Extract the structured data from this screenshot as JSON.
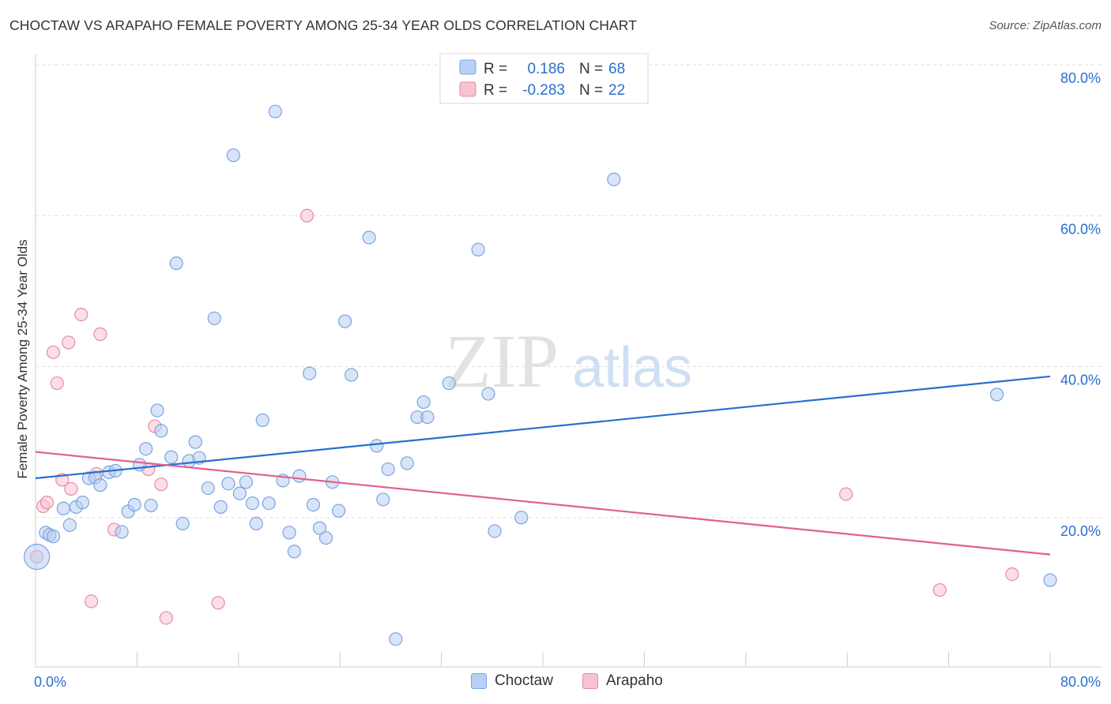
{
  "header": {
    "title": "CHOCTAW VS ARAPAHO FEMALE POVERTY AMONG 25-34 YEAR OLDS CORRELATION CHART",
    "source": "Source: ZipAtlas.com"
  },
  "watermark": {
    "zip": "ZIP",
    "atlas": "atlas"
  },
  "colors": {
    "choctaw_fill": "#b8d0f3",
    "choctaw_stroke": "#7aa4e0",
    "choctaw_line": "#2a6fcf",
    "arapaho_fill": "#f7c3d1",
    "arapaho_stroke": "#e88aa5",
    "arapaho_line": "#e0608f",
    "value_text": "#2a6fcf",
    "grid": "#dddddd"
  },
  "stats_box": {
    "rows": [
      {
        "r_label": "R =",
        "r_value": "0.186",
        "n_label": "N =",
        "n_value": "68",
        "series": "choctaw"
      },
      {
        "r_label": "R =",
        "r_value": "-0.283",
        "n_label": "N =",
        "n_value": "22",
        "series": "arapaho"
      }
    ]
  },
  "legend": {
    "choctaw": "Choctaw",
    "arapaho": "Arapaho"
  },
  "chart_data": {
    "type": "scatter",
    "title": "CHOCTAW VS ARAPAHO FEMALE POVERTY AMONG 25-34 YEAR OLDS CORRELATION CHART",
    "xlabel": "",
    "ylabel": "Female Poverty Among 25-34 Year Olds",
    "xlim": [
      0,
      80
    ],
    "ylim": [
      0,
      80
    ],
    "x_tick_labels": [
      "0.0%",
      "80.0%"
    ],
    "y_tick_labels": [
      "20.0%",
      "40.0%",
      "60.0%",
      "80.0%"
    ],
    "y_gridlines": [
      20,
      40,
      60,
      80
    ],
    "grid": true,
    "legend_position": "bottom-center",
    "series": [
      {
        "name": "Choctaw",
        "trend": {
          "x": [
            0,
            80
          ],
          "y": [
            25.2,
            38.7
          ]
        },
        "points": [
          [
            0.8,
            18.0
          ],
          [
            1.1,
            17.7
          ],
          [
            1.4,
            17.5
          ],
          [
            2.2,
            21.2
          ],
          [
            2.7,
            19.0
          ],
          [
            3.2,
            21.4
          ],
          [
            3.7,
            22.0
          ],
          [
            4.2,
            25.2
          ],
          [
            4.7,
            25.3
          ],
          [
            5.1,
            24.3
          ],
          [
            5.8,
            26.0
          ],
          [
            6.3,
            26.2
          ],
          [
            6.8,
            18.1
          ],
          [
            7.3,
            20.8
          ],
          [
            7.8,
            21.7
          ],
          [
            8.2,
            27.0
          ],
          [
            8.7,
            29.1
          ],
          [
            9.1,
            21.6
          ],
          [
            9.6,
            34.2
          ],
          [
            9.9,
            31.5
          ],
          [
            10.7,
            28.0
          ],
          [
            11.1,
            53.7
          ],
          [
            11.6,
            19.2
          ],
          [
            12.1,
            27.5
          ],
          [
            12.6,
            30.0
          ],
          [
            12.9,
            27.9
          ],
          [
            13.6,
            23.9
          ],
          [
            14.1,
            46.4
          ],
          [
            14.6,
            21.4
          ],
          [
            15.2,
            24.5
          ],
          [
            15.6,
            68.0
          ],
          [
            16.1,
            23.2
          ],
          [
            16.6,
            24.7
          ],
          [
            17.1,
            21.9
          ],
          [
            17.4,
            19.2
          ],
          [
            17.9,
            32.9
          ],
          [
            18.4,
            21.9
          ],
          [
            18.9,
            73.8
          ],
          [
            19.5,
            24.9
          ],
          [
            20.0,
            18.0
          ],
          [
            20.4,
            15.5
          ],
          [
            20.8,
            25.5
          ],
          [
            21.6,
            39.1
          ],
          [
            21.9,
            21.7
          ],
          [
            22.4,
            18.6
          ],
          [
            22.9,
            17.3
          ],
          [
            23.4,
            24.7
          ],
          [
            23.9,
            20.9
          ],
          [
            24.4,
            46.0
          ],
          [
            24.9,
            38.9
          ],
          [
            26.3,
            57.1
          ],
          [
            26.9,
            29.5
          ],
          [
            27.4,
            22.4
          ],
          [
            27.8,
            26.4
          ],
          [
            28.4,
            3.9
          ],
          [
            29.3,
            27.2
          ],
          [
            30.1,
            33.3
          ],
          [
            30.6,
            35.3
          ],
          [
            30.9,
            33.3
          ],
          [
            32.6,
            37.8
          ],
          [
            34.9,
            55.5
          ],
          [
            35.7,
            36.4
          ],
          [
            36.2,
            18.2
          ],
          [
            38.3,
            20.0
          ],
          [
            45.6,
            64.8
          ],
          [
            75.8,
            36.3
          ],
          [
            80.0,
            11.7
          ],
          [
            0.1,
            14.8
          ]
        ]
      },
      {
        "name": "Arapaho",
        "trend": {
          "x": [
            0,
            80
          ],
          "y": [
            28.7,
            15.1
          ]
        },
        "points": [
          [
            0.1,
            14.8
          ],
          [
            0.6,
            21.5
          ],
          [
            0.9,
            22.0
          ],
          [
            1.4,
            41.9
          ],
          [
            1.7,
            37.8
          ],
          [
            2.1,
            25.0
          ],
          [
            2.6,
            43.2
          ],
          [
            2.8,
            23.8
          ],
          [
            3.6,
            46.9
          ],
          [
            4.4,
            8.9
          ],
          [
            4.8,
            25.8
          ],
          [
            5.1,
            44.3
          ],
          [
            6.2,
            18.4
          ],
          [
            8.9,
            26.4
          ],
          [
            9.4,
            32.1
          ],
          [
            9.9,
            24.4
          ],
          [
            10.3,
            6.7
          ],
          [
            14.4,
            8.7
          ],
          [
            21.4,
            60.0
          ],
          [
            63.9,
            23.1
          ],
          [
            71.3,
            10.4
          ],
          [
            77.0,
            12.5
          ]
        ]
      }
    ]
  }
}
